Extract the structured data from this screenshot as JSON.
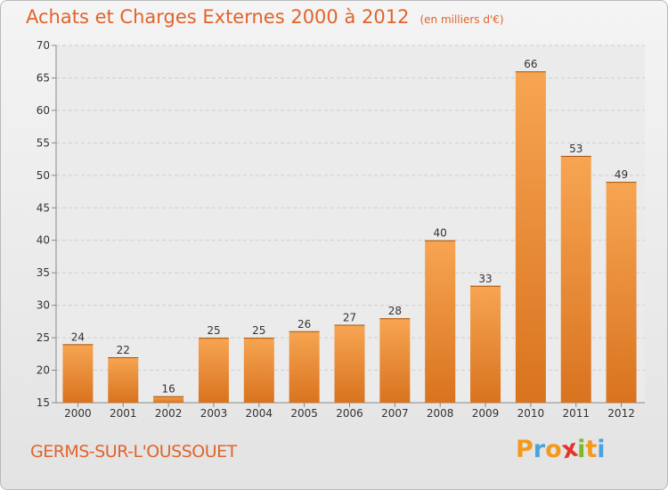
{
  "chart_data": {
    "type": "bar",
    "title": "Achats et Charges Externes 2000 à 2012",
    "subtitle": "(en milliers d'€)",
    "categories": [
      "2000",
      "2001",
      "2002",
      "2003",
      "2004",
      "2005",
      "2006",
      "2007",
      "2008",
      "2009",
      "2010",
      "2011",
      "2012"
    ],
    "values": [
      24,
      22,
      16,
      25,
      25,
      26,
      27,
      28,
      40,
      33,
      66,
      53,
      49
    ],
    "yticks": [
      15,
      20,
      25,
      30,
      35,
      40,
      45,
      50,
      55,
      60,
      65,
      70
    ],
    "ylim": [
      15,
      70
    ],
    "xlabel": "",
    "ylabel": "",
    "grid": true,
    "bar_color_light": "#f7a552",
    "bar_color_dark": "#d9731f"
  },
  "footer": {
    "town": "GERMS-SUR-L'OUSSOUET",
    "logo_letters": [
      "P",
      "r",
      "o",
      "x",
      "i",
      "t",
      "i"
    ],
    "logo_colors": [
      "#f39a1e",
      "#4aa3df",
      "#f39a1e",
      "#e5342a",
      "#7ab929",
      "#f39a1e",
      "#4aa3df"
    ]
  }
}
